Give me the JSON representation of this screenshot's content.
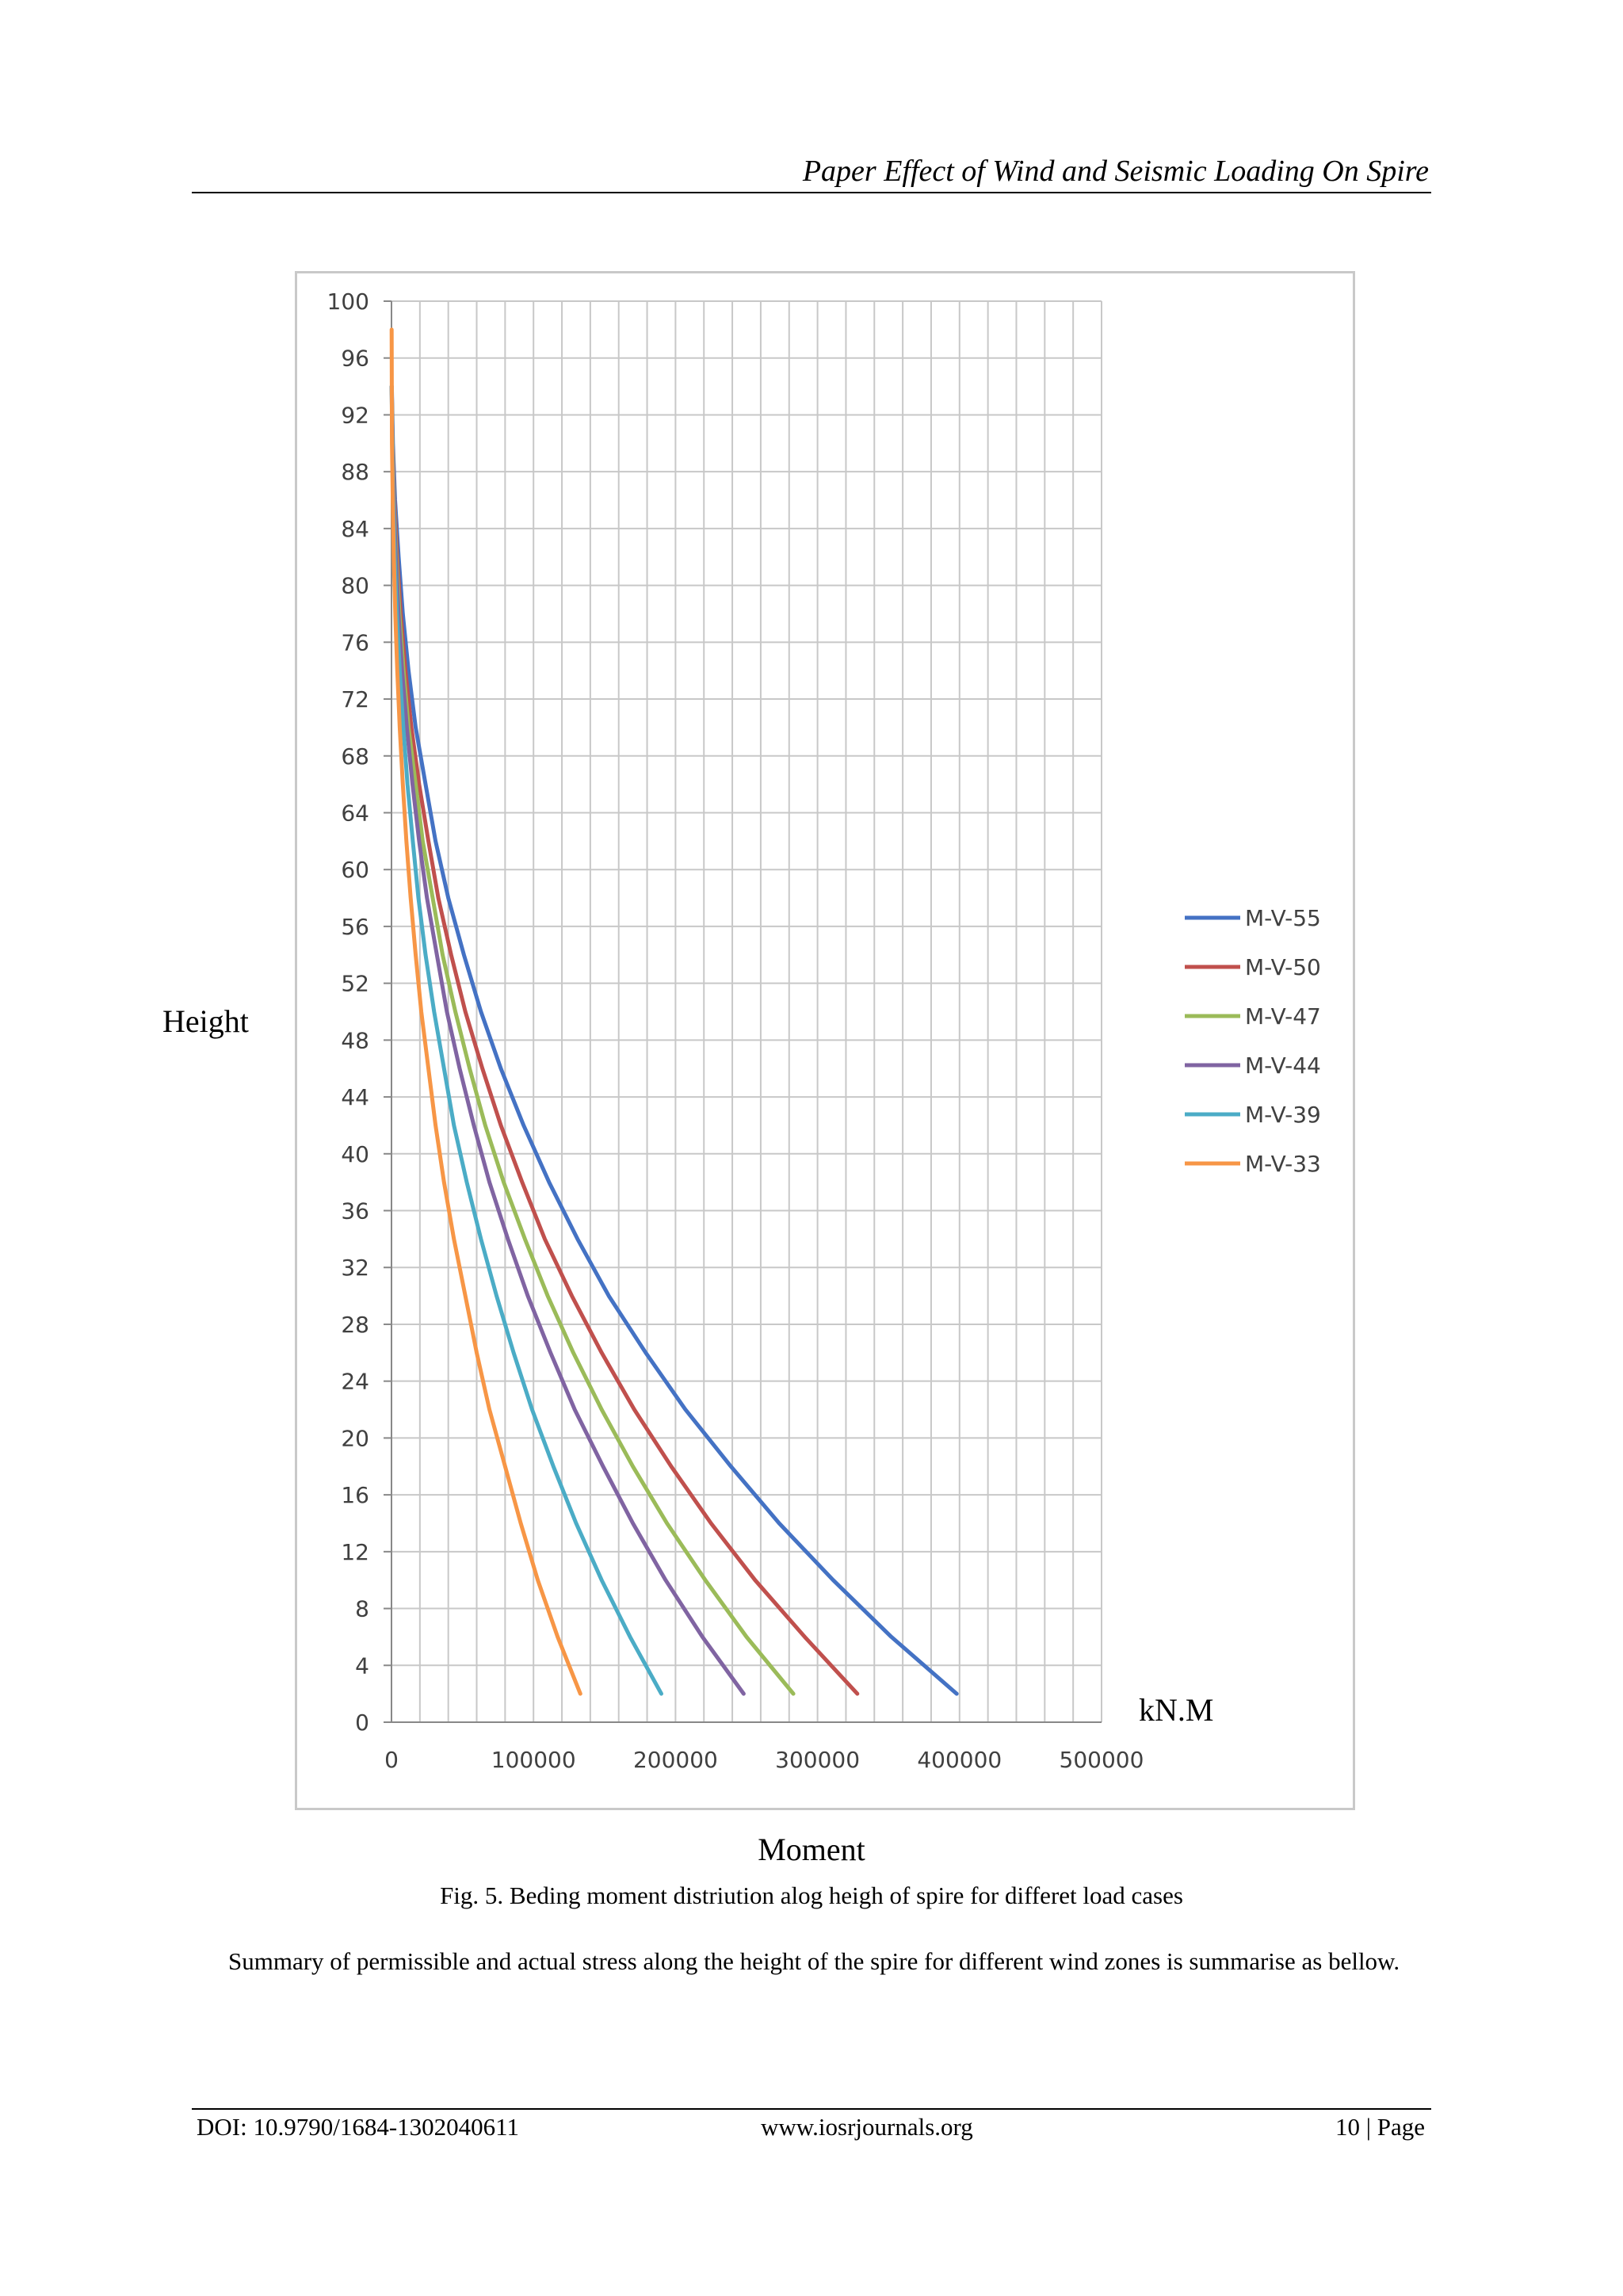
{
  "header": {
    "running_title": "Paper Effect of Wind and Seismic Loading On Spire"
  },
  "figure": {
    "y_axis_label": "Height",
    "unit_label": "kN.M",
    "x_axis_label": "Moment",
    "caption": "Fig. 5.  Beding moment distriution alog heigh of spire for differet load cases"
  },
  "chart_data": {
    "type": "line",
    "title": "",
    "xlabel": "Moment",
    "ylabel": "Height",
    "xlim": [
      0,
      500000
    ],
    "ylim": [
      0,
      100
    ],
    "x_ticks": [
      "0",
      "100000",
      "200000",
      "300000",
      "400000",
      "500000"
    ],
    "y_ticks": [
      "0",
      "4",
      "8",
      "12",
      "16",
      "20",
      "24",
      "28",
      "32",
      "36",
      "40",
      "44",
      "48",
      "52",
      "56",
      "60",
      "64",
      "68",
      "72",
      "76",
      "80",
      "84",
      "88",
      "92",
      "96",
      "100"
    ],
    "grid": true,
    "legend_position": "right",
    "series": [
      {
        "name": "M-V-55",
        "color": "#4472C4",
        "x": [
          398000,
          352000,
          311000,
          273000,
          239000,
          207000,
          179000,
          153000,
          131000,
          111000,
          93000,
          77000,
          63000,
          51000,
          40000,
          31000,
          24000,
          17000,
          12000,
          8000,
          5000,
          2500,
          1000,
          200
        ],
        "y": [
          2,
          6,
          10,
          14,
          18,
          22,
          26,
          30,
          34,
          38,
          42,
          46,
          50,
          54,
          58,
          62,
          66,
          70,
          74,
          78,
          82,
          86,
          90,
          94
        ]
      },
      {
        "name": "M-V-50",
        "color": "#C0504D",
        "x": [
          328000,
          291000,
          256000,
          225000,
          197000,
          171000,
          148000,
          127000,
          108000,
          92000,
          77000,
          64000,
          52000,
          42000,
          33000,
          26000,
          19500,
          14000,
          9800,
          6500,
          4000,
          2000,
          800,
          150
        ],
        "y": [
          2,
          6,
          10,
          14,
          18,
          22,
          26,
          30,
          34,
          38,
          42,
          46,
          50,
          54,
          58,
          62,
          66,
          70,
          74,
          78,
          82,
          86,
          90,
          94
        ]
      },
      {
        "name": "M-V-47",
        "color": "#9BBB59",
        "x": [
          283000,
          250000,
          221000,
          194000,
          170000,
          148000,
          128000,
          110000,
          94000,
          79000,
          66000,
          55000,
          45000,
          36000,
          29000,
          22000,
          17000,
          12000,
          8500,
          5600,
          3400,
          1800,
          700,
          150
        ],
        "y": [
          2,
          6,
          10,
          14,
          18,
          22,
          26,
          30,
          34,
          38,
          42,
          46,
          50,
          54,
          58,
          62,
          66,
          70,
          74,
          78,
          82,
          86,
          90,
          94
        ]
      },
      {
        "name": "M-V-44",
        "color": "#8064A2",
        "x": [
          248000,
          219000,
          193000,
          170000,
          149000,
          129000,
          112000,
          96000,
          82000,
          69000,
          58000,
          48000,
          39000,
          32000,
          25000,
          19500,
          14800,
          10800,
          7500,
          4900,
          3000,
          1600,
          600,
          100
        ],
        "y": [
          2,
          6,
          10,
          14,
          18,
          22,
          26,
          30,
          34,
          38,
          42,
          46,
          50,
          54,
          58,
          62,
          66,
          70,
          74,
          78,
          82,
          86,
          90,
          94
        ]
      },
      {
        "name": "M-V-39",
        "color": "#4BACC6",
        "x": [
          190000,
          168000,
          148000,
          130000,
          114000,
          99000,
          86000,
          74000,
          63000,
          53000,
          44000,
          37000,
          30000,
          24000,
          19000,
          15000,
          11300,
          8300,
          5800,
          3800,
          2300,
          1200,
          500,
          100
        ],
        "y": [
          2,
          6,
          10,
          14,
          18,
          22,
          26,
          30,
          34,
          38,
          42,
          46,
          50,
          54,
          58,
          62,
          66,
          70,
          74,
          78,
          82,
          86,
          90,
          94
        ]
      },
      {
        "name": "M-V-33",
        "color": "#F79646",
        "x": [
          133000,
          117000,
          103000,
          91000,
          80000,
          69000,
          60000,
          52000,
          44000,
          37000,
          31000,
          26000,
          21000,
          17000,
          13500,
          10500,
          8000,
          5800,
          4100,
          2700,
          1600,
          900,
          350,
          100
        ],
        "y": [
          2,
          6,
          10,
          14,
          18,
          22,
          26,
          30,
          34,
          38,
          42,
          46,
          50,
          54,
          58,
          62,
          66,
          70,
          74,
          78,
          82,
          86,
          90,
          98
        ]
      }
    ]
  },
  "body": {
    "paragraph": "Summary of permissible and actual stress along the height of the spire for different wind zones is summarise as bellow."
  },
  "footer": {
    "doi": "DOI: 10.9790/1684-1302040611",
    "website": "www.iosrjournals.org",
    "page": "10 | Page"
  }
}
